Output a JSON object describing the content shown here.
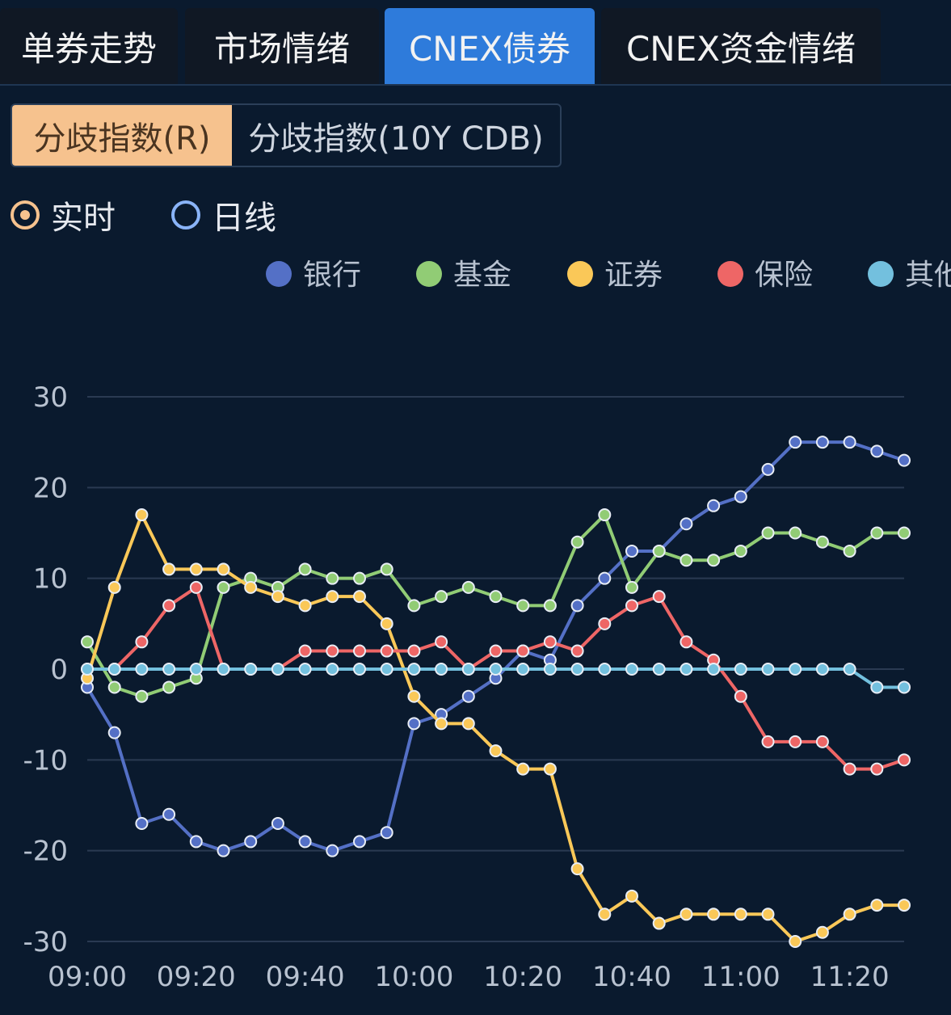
{
  "tabs": [
    {
      "label": "单券走势"
    },
    {
      "label": "市场情绪"
    },
    {
      "label": "CNEX债券"
    },
    {
      "label": "CNEX资金情绪"
    }
  ],
  "active_tab": 2,
  "segments": [
    {
      "label": "分歧指数(R)"
    },
    {
      "label": "分歧指数(10Y CDB)"
    }
  ],
  "active_segment": 0,
  "radios": [
    {
      "label": "实时",
      "checked": true
    },
    {
      "label": "日线",
      "checked": false
    }
  ],
  "colors": {
    "background": "#0a1a2e",
    "active_tab": "#2e7bdb",
    "active_segment": "#f6c28e",
    "grid": "#2a3a52",
    "axis_text": "#b8c2d0"
  },
  "chart_data": {
    "type": "line",
    "x": [
      "09:00",
      "09:05",
      "09:10",
      "09:15",
      "09:20",
      "09:25",
      "09:30",
      "09:35",
      "09:40",
      "09:45",
      "09:50",
      "09:55",
      "10:00",
      "10:05",
      "10:10",
      "10:15",
      "10:20",
      "10:25",
      "10:30",
      "10:35",
      "10:40",
      "10:45",
      "10:50",
      "10:55",
      "11:00",
      "11:05",
      "11:10",
      "11:15",
      "11:20",
      "11:25",
      "11:30"
    ],
    "x_ticks": [
      "09:00",
      "09:20",
      "09:40",
      "10:00",
      "10:20",
      "10:40",
      "11:00",
      "11:20"
    ],
    "y_ticks": [
      30,
      20,
      10,
      0,
      -10,
      -20,
      -30
    ],
    "ylim": [
      -30,
      30
    ],
    "grid": true,
    "legend_position": "top-right",
    "series": [
      {
        "name": "银行",
        "color": "#5470c6",
        "values": [
          -2,
          -7,
          -17,
          -16,
          -19,
          -20,
          -19,
          -17,
          -19,
          -20,
          -19,
          -18,
          -6,
          -5,
          -3,
          -1,
          2,
          1,
          7,
          10,
          13,
          13,
          16,
          18,
          19,
          22,
          25,
          25,
          25,
          24,
          23
        ]
      },
      {
        "name": "基金",
        "color": "#91cc75",
        "values": [
          3,
          -2,
          -3,
          -2,
          -1,
          9,
          10,
          9,
          11,
          10,
          10,
          11,
          7,
          8,
          9,
          8,
          7,
          7,
          14,
          17,
          9,
          13,
          12,
          12,
          13,
          15,
          15,
          14,
          13,
          15,
          15
        ]
      },
      {
        "name": "证券",
        "color": "#fac858",
        "values": [
          -1,
          9,
          17,
          11,
          11,
          11,
          9,
          8,
          7,
          8,
          8,
          5,
          -3,
          -6,
          -6,
          -9,
          -11,
          -11,
          -22,
          -27,
          -25,
          -28,
          -27,
          -27,
          -27,
          -27,
          -30,
          -29,
          -27,
          -26,
          -26
        ]
      },
      {
        "name": "保险",
        "color": "#ee6666",
        "values": [
          0,
          0,
          3,
          7,
          9,
          0,
          0,
          0,
          2,
          2,
          2,
          2,
          2,
          3,
          0,
          2,
          2,
          3,
          2,
          5,
          7,
          8,
          3,
          1,
          -3,
          -8,
          -8,
          -8,
          -11,
          -11,
          -10
        ]
      },
      {
        "name": "其他",
        "color": "#73c0de",
        "values": [
          0,
          0,
          0,
          0,
          0,
          0,
          0,
          0,
          0,
          0,
          0,
          0,
          0,
          0,
          0,
          0,
          0,
          0,
          0,
          0,
          0,
          0,
          0,
          0,
          0,
          0,
          0,
          0,
          0,
          -2,
          -2
        ]
      }
    ]
  }
}
